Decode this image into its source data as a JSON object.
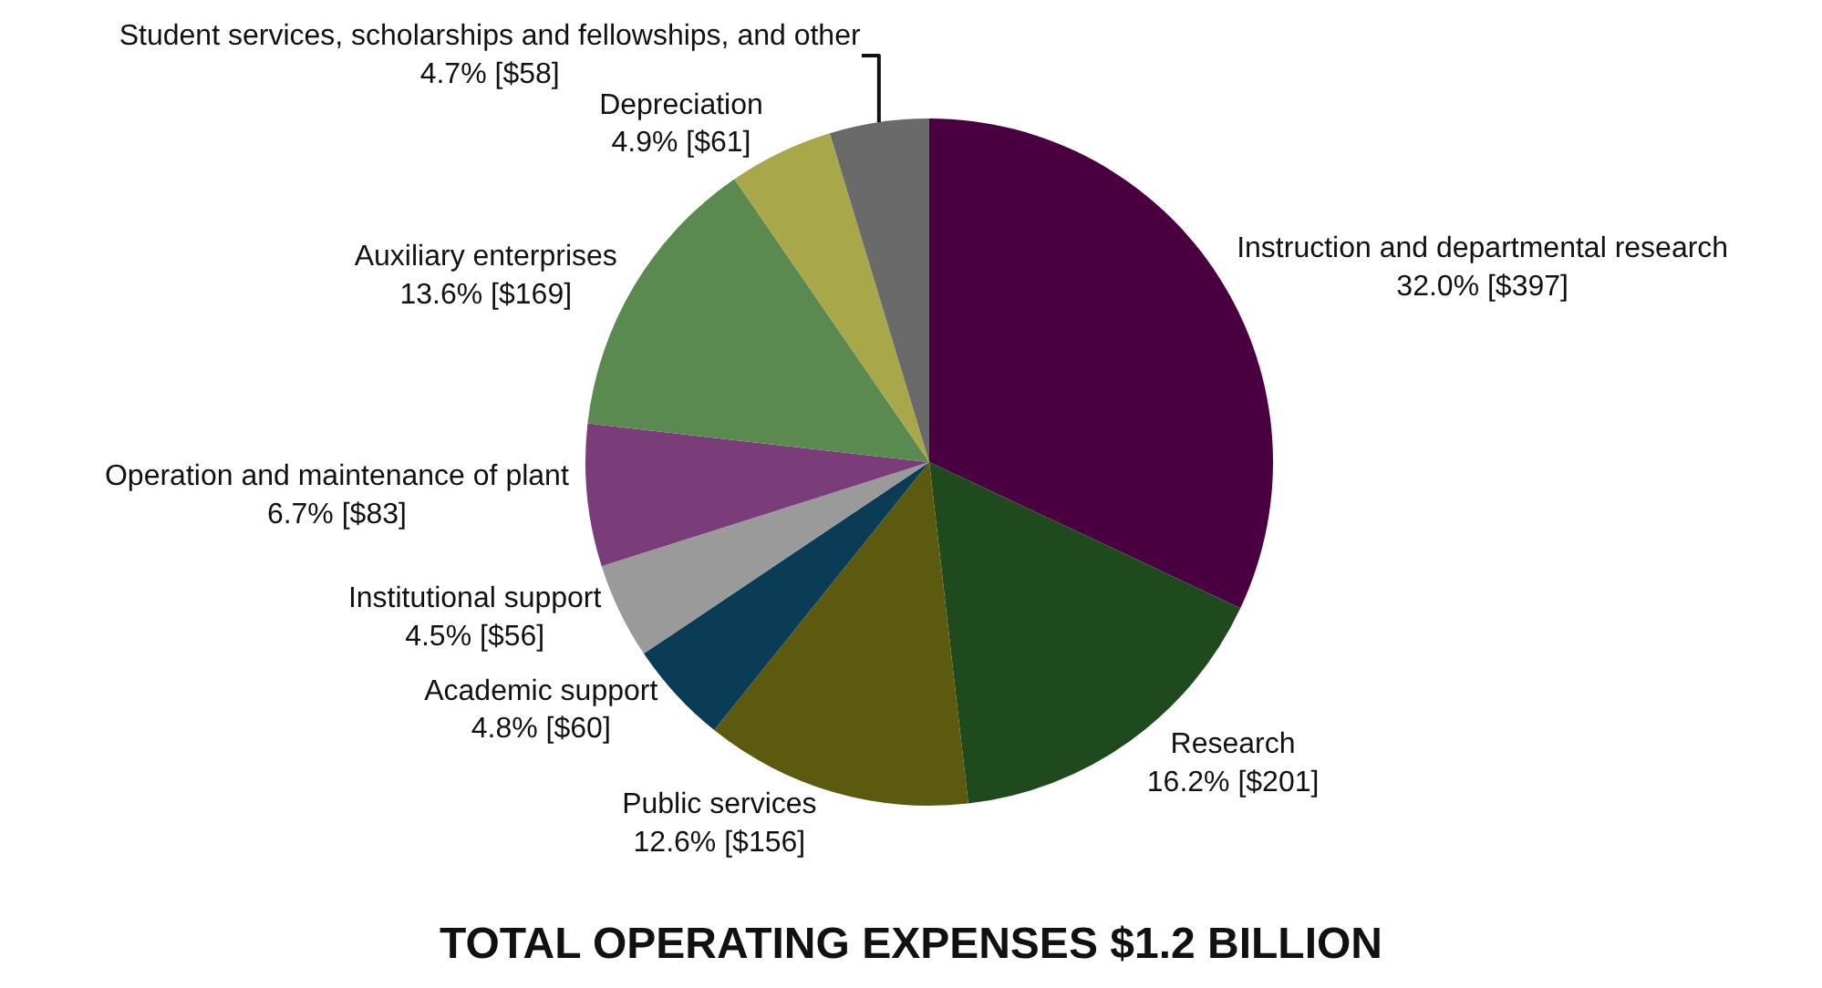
{
  "chart_data": {
    "type": "pie",
    "title": "TOTAL OPERATING EXPENSES $1.2 BILLION",
    "categories": [
      "Instruction and departmental research",
      "Research",
      "Public services",
      "Academic support",
      "Institutional support",
      "Operation and maintenance of plant",
      "Auxiliary enterprises",
      "Depreciation",
      "Student services, scholarships and fellowships, and other"
    ],
    "values": [
      397,
      201,
      156,
      60,
      56,
      83,
      169,
      61,
      58
    ],
    "value_labels": [
      "32.0% [$397]",
      "16.2% [$201]",
      "12.6% [$156]",
      "4.8% [$60]",
      "4.5% [$56]",
      "6.7% [$83]",
      "13.6% [$169]",
      "4.9% [$61]",
      "4.7% [$58]"
    ],
    "colors": [
      "#4a0040",
      "#1e4a1e",
      "#5c5a0e",
      "#0a3d55",
      "#9a9a9a",
      "#7a3d7a",
      "#5a8a50",
      "#a8a84a",
      "#6a6a6a"
    ],
    "legend": false
  }
}
